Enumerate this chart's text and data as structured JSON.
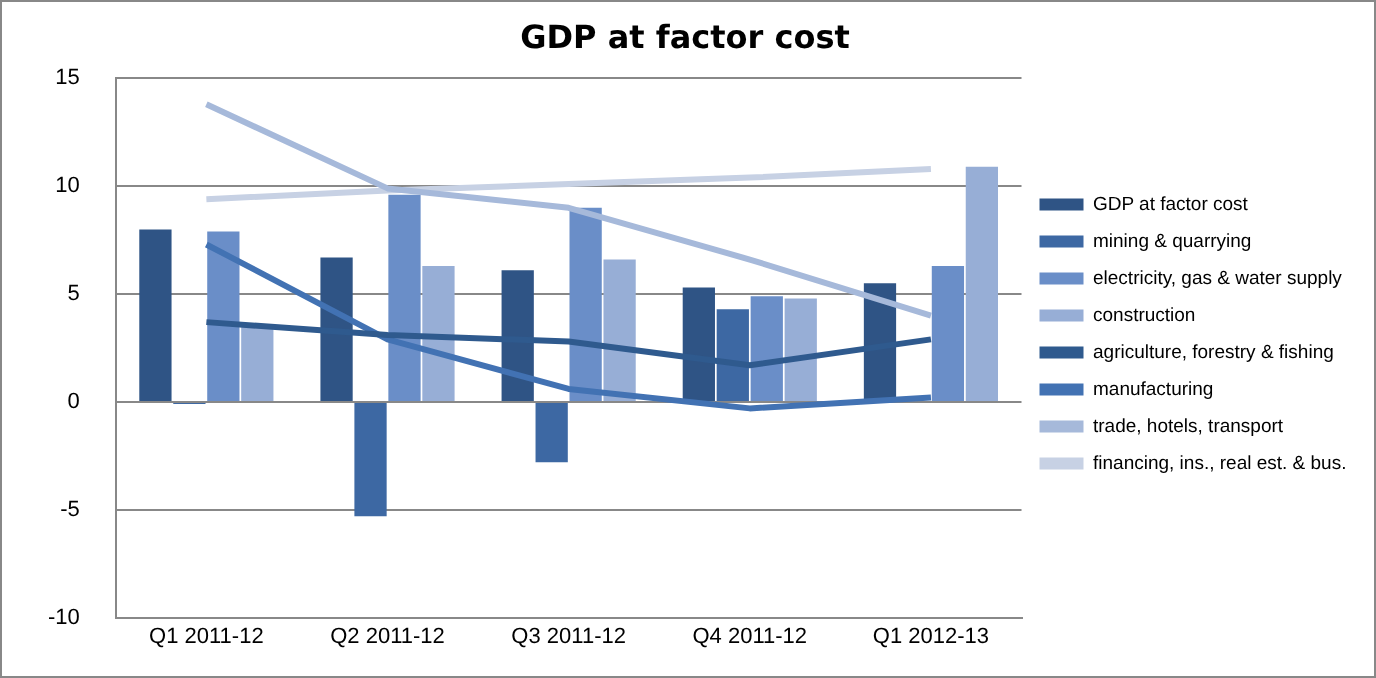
{
  "chart_data": {
    "type": "bar",
    "title": "GDP at factor cost",
    "categories": [
      "Q1 2011-12",
      "Q2 2011-12",
      "Q3 2011-12",
      "Q4 2011-12",
      "Q1 2012-13"
    ],
    "series": [
      {
        "name": "GDP at factor cost",
        "color": "#2f5485",
        "values": [
          8.0,
          6.7,
          6.1,
          5.3,
          5.5
        ]
      },
      {
        "name": "mining & quarrying",
        "color": "#3d68a3",
        "values": [
          -0.1,
          -5.3,
          -2.8,
          4.3,
          null
        ]
      },
      {
        "name": "electricity, gas & water supply",
        "color": "#6a8ec8",
        "values": [
          7.9,
          9.6,
          9.0,
          4.9,
          6.3
        ]
      },
      {
        "name": "construction",
        "color": "#97aed6",
        "values": [
          3.5,
          6.3,
          6.6,
          4.8,
          10.9
        ]
      },
      {
        "name": "agriculture, forestry & fishing",
        "type": "line",
        "color": "#2f5a8e",
        "values": [
          3.7,
          3.1,
          2.8,
          1.7,
          2.9
        ]
      },
      {
        "name": "manufacturing",
        "type": "line",
        "color": "#4272b3",
        "values": [
          7.3,
          2.9,
          0.6,
          -0.3,
          0.2
        ]
      },
      {
        "name": "trade, hotels, transport",
        "type": "line",
        "color": "#a6b9da",
        "values": [
          13.8,
          9.9,
          9.0,
          6.6,
          4.0
        ]
      },
      {
        "name": "financing, ins., real est. & bus.",
        "type": "line",
        "color": "#c7d1e4",
        "values": [
          9.4,
          9.8,
          10.1,
          10.4,
          10.8
        ]
      }
    ],
    "ylim": [
      -10,
      15
    ],
    "yticks": [
      -10,
      -5,
      0,
      5,
      10,
      15
    ],
    "grid": "y",
    "legend": "right",
    "marker": "none"
  }
}
